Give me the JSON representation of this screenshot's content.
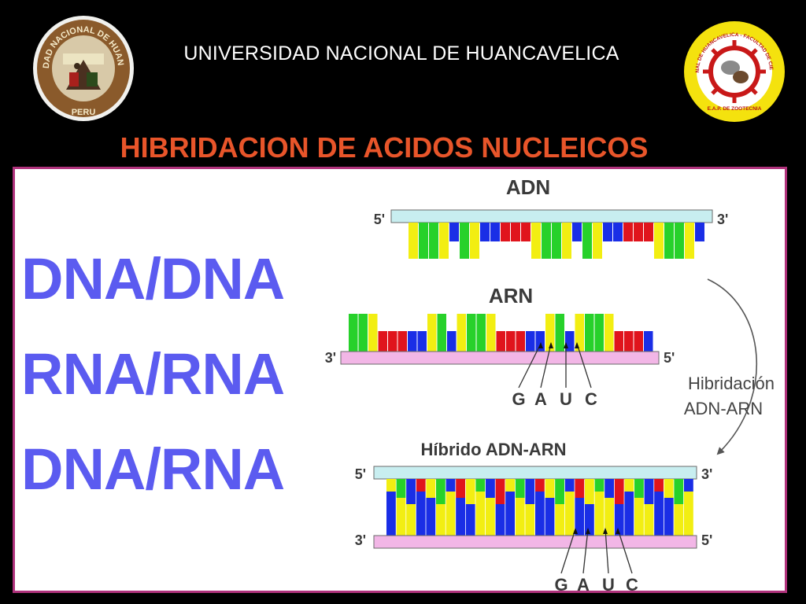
{
  "header": {
    "university": "UNIVERSIDAD NACIONAL DE HUANCAVELICA",
    "title": "HIBRIDACION DE ACIDOS NUCLEICOS",
    "left_logo": {
      "icon": "university-seal-icon",
      "text_top": "UNIVERSIDAD NACIONAL DE HUANCAVELICA",
      "text_bottom": "PERU"
    },
    "right_logo": {
      "icon": "faculty-seal-icon",
      "text": "UNIVERSIDAD NACIONAL DE HUANCAVELICA - FACULTAD DE CIENCIAS DE INGENIERIA",
      "text_bottom": "E.A.P. DE ZOOTECNIA"
    }
  },
  "labels": [
    "DNA/DNA",
    "RNA/RNA",
    "DNA/RNA"
  ],
  "diagram": {
    "adn": {
      "title": "ADN",
      "end_left": "5'",
      "end_right": "3'"
    },
    "arn": {
      "title": "ARN",
      "end_left": "3'",
      "end_right": "5'",
      "bases": [
        "G",
        "A",
        "U",
        "C"
      ]
    },
    "arrow_label_1": "Hibridación",
    "arrow_label_2": "ADN-ARN",
    "hybrid": {
      "title": "Híbrido ADN-ARN",
      "top_left": "5'",
      "top_right": "3'",
      "bottom_left": "3'",
      "bottom_right": "5'",
      "bases": [
        "G",
        "A",
        "U",
        "C"
      ]
    }
  },
  "colors": {
    "dna_strand": "#c8eef0",
    "rna_strand": "#f2b6e6",
    "green": "#27d12a",
    "yellow": "#f2ee12",
    "red": "#e0141c",
    "blue": "#1a2ee6",
    "label_blue": "#5b5bf0",
    "title_orange": "#e8552a",
    "panel_border": "#b0327c"
  }
}
